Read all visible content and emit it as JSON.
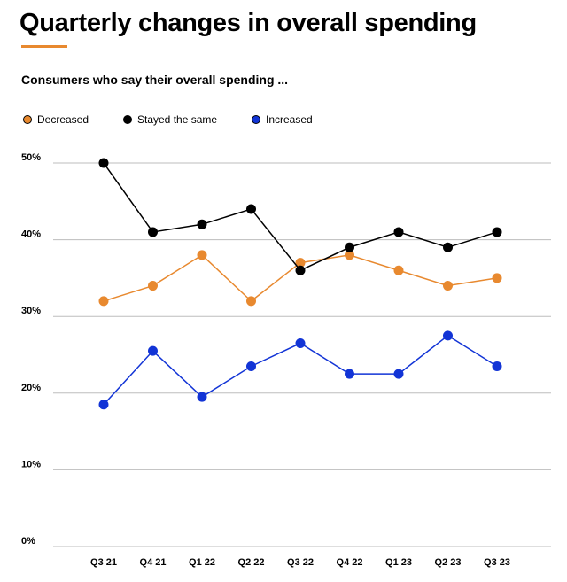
{
  "header": {
    "title": "Quarterly changes in overall spending",
    "subtitle": "Consumers who say their overall spending ..."
  },
  "chart_data": {
    "type": "line",
    "title": "Quarterly changes in overall spending",
    "subtitle": "Consumers who say their overall spending ...",
    "xlabel": "",
    "ylabel": "",
    "categories": [
      "Q3 21",
      "Q4 21",
      "Q1 22",
      "Q2 22",
      "Q3 22",
      "Q4 22",
      "Q1 23",
      "Q2 23",
      "Q3 23"
    ],
    "y_ticks": [
      "0%",
      "10%",
      "20%",
      "30%",
      "40%",
      "50%"
    ],
    "ylim": [
      0,
      50
    ],
    "grid": true,
    "legend_position": "top-left",
    "series": [
      {
        "name": "Decreased",
        "color": "#E8892F",
        "values": [
          32,
          34,
          38,
          32,
          37,
          38,
          36,
          34,
          35
        ]
      },
      {
        "name": "Stayed the same",
        "color": "#000000",
        "values": [
          50,
          41,
          42,
          44,
          36,
          39,
          41,
          39,
          41
        ]
      },
      {
        "name": "Increased",
        "color": "#1234D6",
        "values": [
          18.5,
          25.5,
          19.5,
          23.5,
          26.5,
          22.5,
          22.5,
          27.5,
          23.5
        ]
      }
    ]
  }
}
